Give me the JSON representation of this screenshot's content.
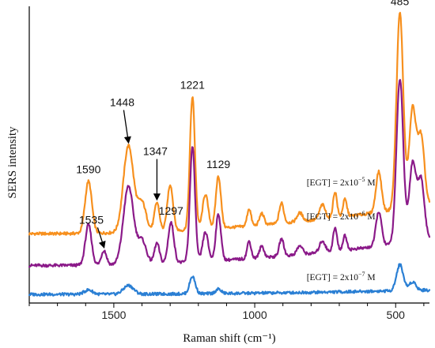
{
  "chart_data": {
    "type": "line",
    "xlabel": "Raman shift (cm⁻¹)",
    "ylabel": "SERS intensity",
    "x_reversed": true,
    "xlim": [
      1800,
      380
    ],
    "ylim": [
      0,
      100
    ],
    "x_ticks": [
      1500,
      1000,
      500
    ],
    "grid": false,
    "series": [
      {
        "label_prefix": "[EGT] = 2x10",
        "label_exponent": "−5",
        "label_suffix": " M",
        "color": "#f7901e",
        "baseline": 24,
        "peaks": [
          [
            1590,
            18,
            12
          ],
          [
            1448,
            30,
            18
          ],
          [
            1400,
            10,
            15
          ],
          [
            1347,
            10,
            9
          ],
          [
            1300,
            16,
            10
          ],
          [
            1221,
            46,
            9
          ],
          [
            1175,
            12,
            10
          ],
          [
            1129,
            18,
            9
          ],
          [
            1020,
            6,
            7
          ],
          [
            975,
            4,
            8
          ],
          [
            905,
            7,
            8
          ],
          [
            840,
            3,
            10
          ],
          [
            760,
            5,
            10
          ],
          [
            715,
            9,
            7
          ],
          [
            680,
            6,
            7
          ],
          [
            560,
            14,
            10
          ],
          [
            485,
            68,
            12
          ],
          [
            440,
            34,
            12
          ],
          [
            410,
            24,
            12
          ]
        ],
        "drift": 10
      },
      {
        "label_prefix": "[EGT] = 2x10",
        "label_exponent": "−6",
        "label_suffix": " M",
        "color": "#8b1a89",
        "baseline": 13,
        "peaks": [
          [
            1590,
            14,
            11
          ],
          [
            1535,
            5,
            9
          ],
          [
            1448,
            27,
            18
          ],
          [
            1400,
            8,
            15
          ],
          [
            1347,
            7,
            9
          ],
          [
            1297,
            14,
            10
          ],
          [
            1221,
            40,
            9
          ],
          [
            1175,
            10,
            10
          ],
          [
            1129,
            16,
            9
          ],
          [
            1020,
            6,
            7
          ],
          [
            975,
            4,
            8
          ],
          [
            905,
            6,
            8
          ],
          [
            840,
            3,
            10
          ],
          [
            760,
            4,
            10
          ],
          [
            715,
            8,
            7
          ],
          [
            680,
            5,
            7
          ],
          [
            560,
            12,
            10
          ],
          [
            485,
            57,
            12
          ],
          [
            440,
            27,
            12
          ],
          [
            410,
            21,
            12
          ]
        ],
        "drift": 9
      },
      {
        "label_prefix": "[EGT] = 2x10",
        "label_exponent": "−7",
        "label_suffix": " M",
        "color": "#2a7fd4",
        "baseline": 3,
        "peaks": [
          [
            1590,
            1.5,
            15
          ],
          [
            1448,
            3,
            18
          ],
          [
            1221,
            6,
            10
          ],
          [
            1129,
            1.5,
            10
          ],
          [
            485,
            9,
            12
          ],
          [
            440,
            3,
            12
          ]
        ],
        "drift": 1.5
      }
    ],
    "annotations": [
      {
        "text": "1590",
        "x": 1590,
        "series": 0,
        "arrow": false
      },
      {
        "text": "1448",
        "x": 1448,
        "series": 0,
        "arrow": true
      },
      {
        "text": "1347",
        "x": 1347,
        "series": 0,
        "arrow": true
      },
      {
        "text": "1221",
        "x": 1221,
        "series": 0,
        "arrow": false
      },
      {
        "text": "1129",
        "x": 1129,
        "series": 0,
        "arrow": false
      },
      {
        "text": "485",
        "x": 485,
        "series": 0,
        "arrow": false
      },
      {
        "text": "1535",
        "x": 1535,
        "series": 1,
        "arrow": true
      },
      {
        "text": "1297",
        "x": 1297,
        "series": 1,
        "arrow": false
      }
    ]
  }
}
